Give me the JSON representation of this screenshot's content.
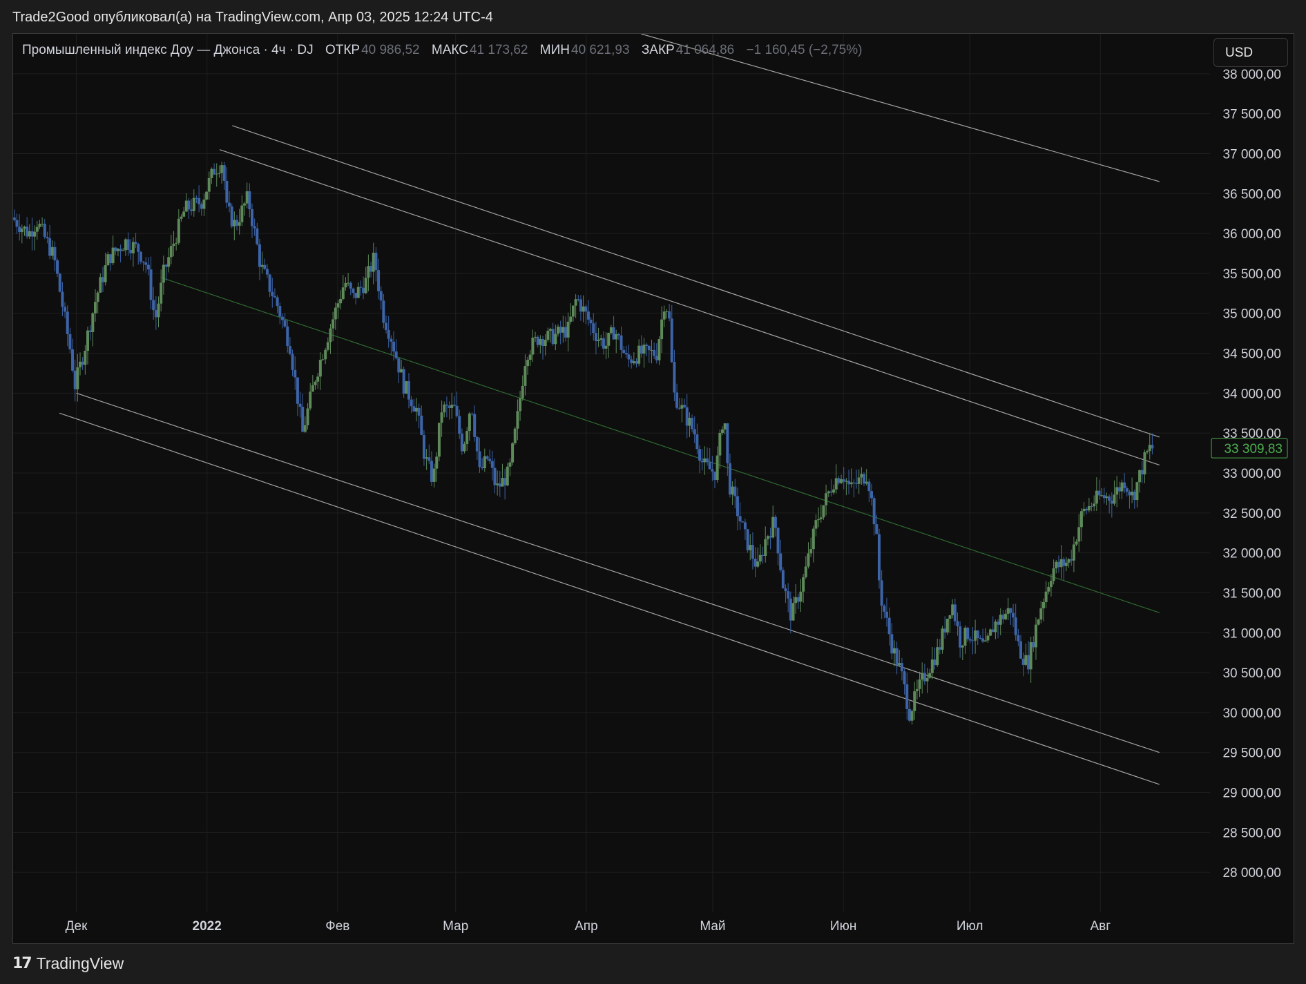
{
  "header": {
    "publish_line": "Trade2Good опубликовал(а) на TradingView.com, Апр 03, 2025 12:24 UTC-4"
  },
  "legend": {
    "symbol": "Промышленный индекс Доу — Джонса · 4ч · DJ",
    "open_label": "ОТКР",
    "open_value": "40 986,52",
    "high_label": "МАКС",
    "high_value": "41 173,62",
    "low_label": "МИН",
    "low_value": "40 621,93",
    "close_label": "ЗАКР",
    "close_value": "41 064,86",
    "change": "−1 160,45 (−2,75%)"
  },
  "currency_button": "USD",
  "footer": {
    "brand": "TradingView",
    "logo_icon": "tradingview-logo-icon"
  },
  "colors": {
    "background": "#0e0e0e",
    "up_candle": "#5e8a5a",
    "down_candle": "#3d64a8",
    "channel_line": "#bfbfbf",
    "midline": "#2f6b32",
    "last_price": "#4caf50"
  },
  "chart_data": {
    "type": "candlestick",
    "timeframe": "4ч",
    "ylim": [
      27500,
      38500
    ],
    "y_ticks": [
      38000,
      37500,
      37000,
      36500,
      36000,
      35500,
      35000,
      34500,
      34000,
      33500,
      33000,
      32500,
      32000,
      31500,
      31000,
      30500,
      30000,
      29500,
      29000,
      28500,
      28000
    ],
    "y_tick_labels": [
      "38 000,00",
      "37 500,00",
      "37 000,00",
      "36 500,00",
      "36 000,00",
      "35 500,00",
      "35 000,00",
      "34 500,00",
      "34 000,00",
      "33 500,00",
      "33 000,00",
      "32 500,00",
      "32 000,00",
      "31 500,00",
      "31 000,00",
      "30 500,00",
      "30 000,00",
      "29 500,00",
      "29 000,00",
      "28 500,00",
      "28 000,00"
    ],
    "x_ticks": [
      {
        "date": "2021-12-01",
        "label": "Дек"
      },
      {
        "date": "2022-01-01",
        "label": "2022"
      },
      {
        "date": "2022-02-01",
        "label": "Фев"
      },
      {
        "date": "2022-03-01",
        "label": "Мар"
      },
      {
        "date": "2022-04-01",
        "label": "Апр"
      },
      {
        "date": "2022-05-01",
        "label": "Май"
      },
      {
        "date": "2022-06-01",
        "label": "Июн"
      },
      {
        "date": "2022-07-01",
        "label": "Июл"
      },
      {
        "date": "2022-08-01",
        "label": "Авг"
      }
    ],
    "xlim": [
      "2021-11-16",
      "2022-08-27"
    ],
    "price_path": [
      [
        "2021-11-16",
        36200
      ],
      [
        "2021-11-20",
        36000
      ],
      [
        "2021-11-22",
        36150
      ],
      [
        "2021-11-26",
        35700
      ],
      [
        "2021-11-30",
        34500
      ],
      [
        "2021-12-01",
        34100
      ],
      [
        "2021-12-03",
        34500
      ],
      [
        "2021-12-06",
        35200
      ],
      [
        "2021-12-09",
        35700
      ],
      [
        "2021-12-13",
        35900
      ],
      [
        "2021-12-16",
        35800
      ],
      [
        "2021-12-18",
        35600
      ],
      [
        "2021-12-20",
        34900
      ],
      [
        "2021-12-22",
        35500
      ],
      [
        "2021-12-27",
        36300
      ],
      [
        "2021-12-31",
        36400
      ],
      [
        "2022-01-03",
        36800
      ],
      [
        "2022-01-05",
        36900
      ],
      [
        "2022-01-06",
        36300
      ],
      [
        "2022-01-08",
        36100
      ],
      [
        "2022-01-11",
        36450
      ],
      [
        "2022-01-13",
        35900
      ],
      [
        "2022-01-14",
        35600
      ],
      [
        "2022-01-18",
        35100
      ],
      [
        "2022-01-21",
        34600
      ],
      [
        "2022-01-24",
        33500
      ],
      [
        "2022-01-27",
        34200
      ],
      [
        "2022-01-31",
        34900
      ],
      [
        "2022-02-03",
        35400
      ],
      [
        "2022-02-05",
        35200
      ],
      [
        "2022-02-08",
        35400
      ],
      [
        "2022-02-10",
        35700
      ],
      [
        "2022-02-12",
        35000
      ],
      [
        "2022-02-14",
        34700
      ],
      [
        "2022-02-17",
        34100
      ],
      [
        "2022-02-20",
        33800
      ],
      [
        "2022-02-22",
        33200
      ],
      [
        "2022-02-24",
        32900
      ],
      [
        "2022-02-26",
        33800
      ],
      [
        "2022-03-01",
        33800
      ],
      [
        "2022-03-03",
        33300
      ],
      [
        "2022-03-05",
        33900
      ],
      [
        "2022-03-07",
        33000
      ],
      [
        "2022-03-09",
        33200
      ],
      [
        "2022-03-11",
        32800
      ],
      [
        "2022-03-14",
        33000
      ],
      [
        "2022-03-16",
        33700
      ],
      [
        "2022-03-18",
        34500
      ],
      [
        "2022-03-21",
        34700
      ],
      [
        "2022-03-24",
        34700
      ],
      [
        "2022-03-28",
        34800
      ],
      [
        "2022-03-30",
        35200
      ],
      [
        "2022-04-01",
        35000
      ],
      [
        "2022-04-04",
        34700
      ],
      [
        "2022-04-06",
        34600
      ],
      [
        "2022-04-08",
        34800
      ],
      [
        "2022-04-11",
        34400
      ],
      [
        "2022-04-14",
        34500
      ],
      [
        "2022-04-18",
        34500
      ],
      [
        "2022-04-20",
        35200
      ],
      [
        "2022-04-21",
        34900
      ],
      [
        "2022-04-22",
        34000
      ],
      [
        "2022-04-25",
        33700
      ],
      [
        "2022-04-27",
        33500
      ],
      [
        "2022-04-29",
        33100
      ],
      [
        "2022-05-02",
        33000
      ],
      [
        "2022-05-04",
        33800
      ],
      [
        "2022-05-05",
        32900
      ],
      [
        "2022-05-09",
        32200
      ],
      [
        "2022-05-12",
        31800
      ],
      [
        "2022-05-14",
        32200
      ],
      [
        "2022-05-16",
        32400
      ],
      [
        "2022-05-18",
        31600
      ],
      [
        "2022-05-20",
        31200
      ],
      [
        "2022-05-23",
        31700
      ],
      [
        "2022-05-26",
        32400
      ],
      [
        "2022-05-30",
        32900
      ],
      [
        "2022-06-01",
        33000
      ],
      [
        "2022-06-03",
        32800
      ],
      [
        "2022-06-07",
        33000
      ],
      [
        "2022-06-09",
        32300
      ],
      [
        "2022-06-10",
        31500
      ],
      [
        "2022-06-13",
        30800
      ],
      [
        "2022-06-15",
        30500
      ],
      [
        "2022-06-17",
        30000
      ],
      [
        "2022-06-20",
        30400
      ],
      [
        "2022-06-24",
        30800
      ],
      [
        "2022-06-27",
        31400
      ],
      [
        "2022-06-29",
        30900
      ],
      [
        "2022-07-01",
        31000
      ],
      [
        "2022-07-05",
        30800
      ],
      [
        "2022-07-07",
        31100
      ],
      [
        "2022-07-11",
        31300
      ],
      [
        "2022-07-13",
        30800
      ],
      [
        "2022-07-15",
        30600
      ],
      [
        "2022-07-18",
        31300
      ],
      [
        "2022-07-21",
        31800
      ],
      [
        "2022-07-25",
        31900
      ],
      [
        "2022-07-28",
        32500
      ],
      [
        "2022-08-01",
        32700
      ],
      [
        "2022-08-04",
        32700
      ],
      [
        "2022-08-07",
        32900
      ],
      [
        "2022-08-09",
        32700
      ],
      [
        "2022-08-12",
        33200
      ],
      [
        "2022-08-13",
        33310
      ]
    ],
    "last_price": 33309.83,
    "last_price_label": "33 309,83",
    "lines": [
      {
        "kind": "channel-upper",
        "from": [
          "2022-01-04",
          37050
        ],
        "to": [
          "2022-08-15",
          33100
        ]
      },
      {
        "kind": "channel-upper-2",
        "from": [
          "2022-01-07",
          37350
        ],
        "to": [
          "2022-08-15",
          33450
        ]
      },
      {
        "kind": "channel-lower",
        "from": [
          "2021-12-01",
          34000
        ],
        "to": [
          "2022-08-15",
          29500
        ]
      },
      {
        "kind": "channel-lower-2",
        "from": [
          "2021-11-27",
          33750
        ],
        "to": [
          "2022-08-15",
          29100
        ]
      },
      {
        "kind": "midline",
        "from": [
          "2021-12-21",
          35450
        ],
        "to": [
          "2022-08-15",
          31250
        ]
      },
      {
        "kind": "outer-line",
        "from": [
          "2022-04-14",
          38500
        ],
        "to": [
          "2022-08-15",
          36650
        ]
      }
    ],
    "grid": true
  }
}
